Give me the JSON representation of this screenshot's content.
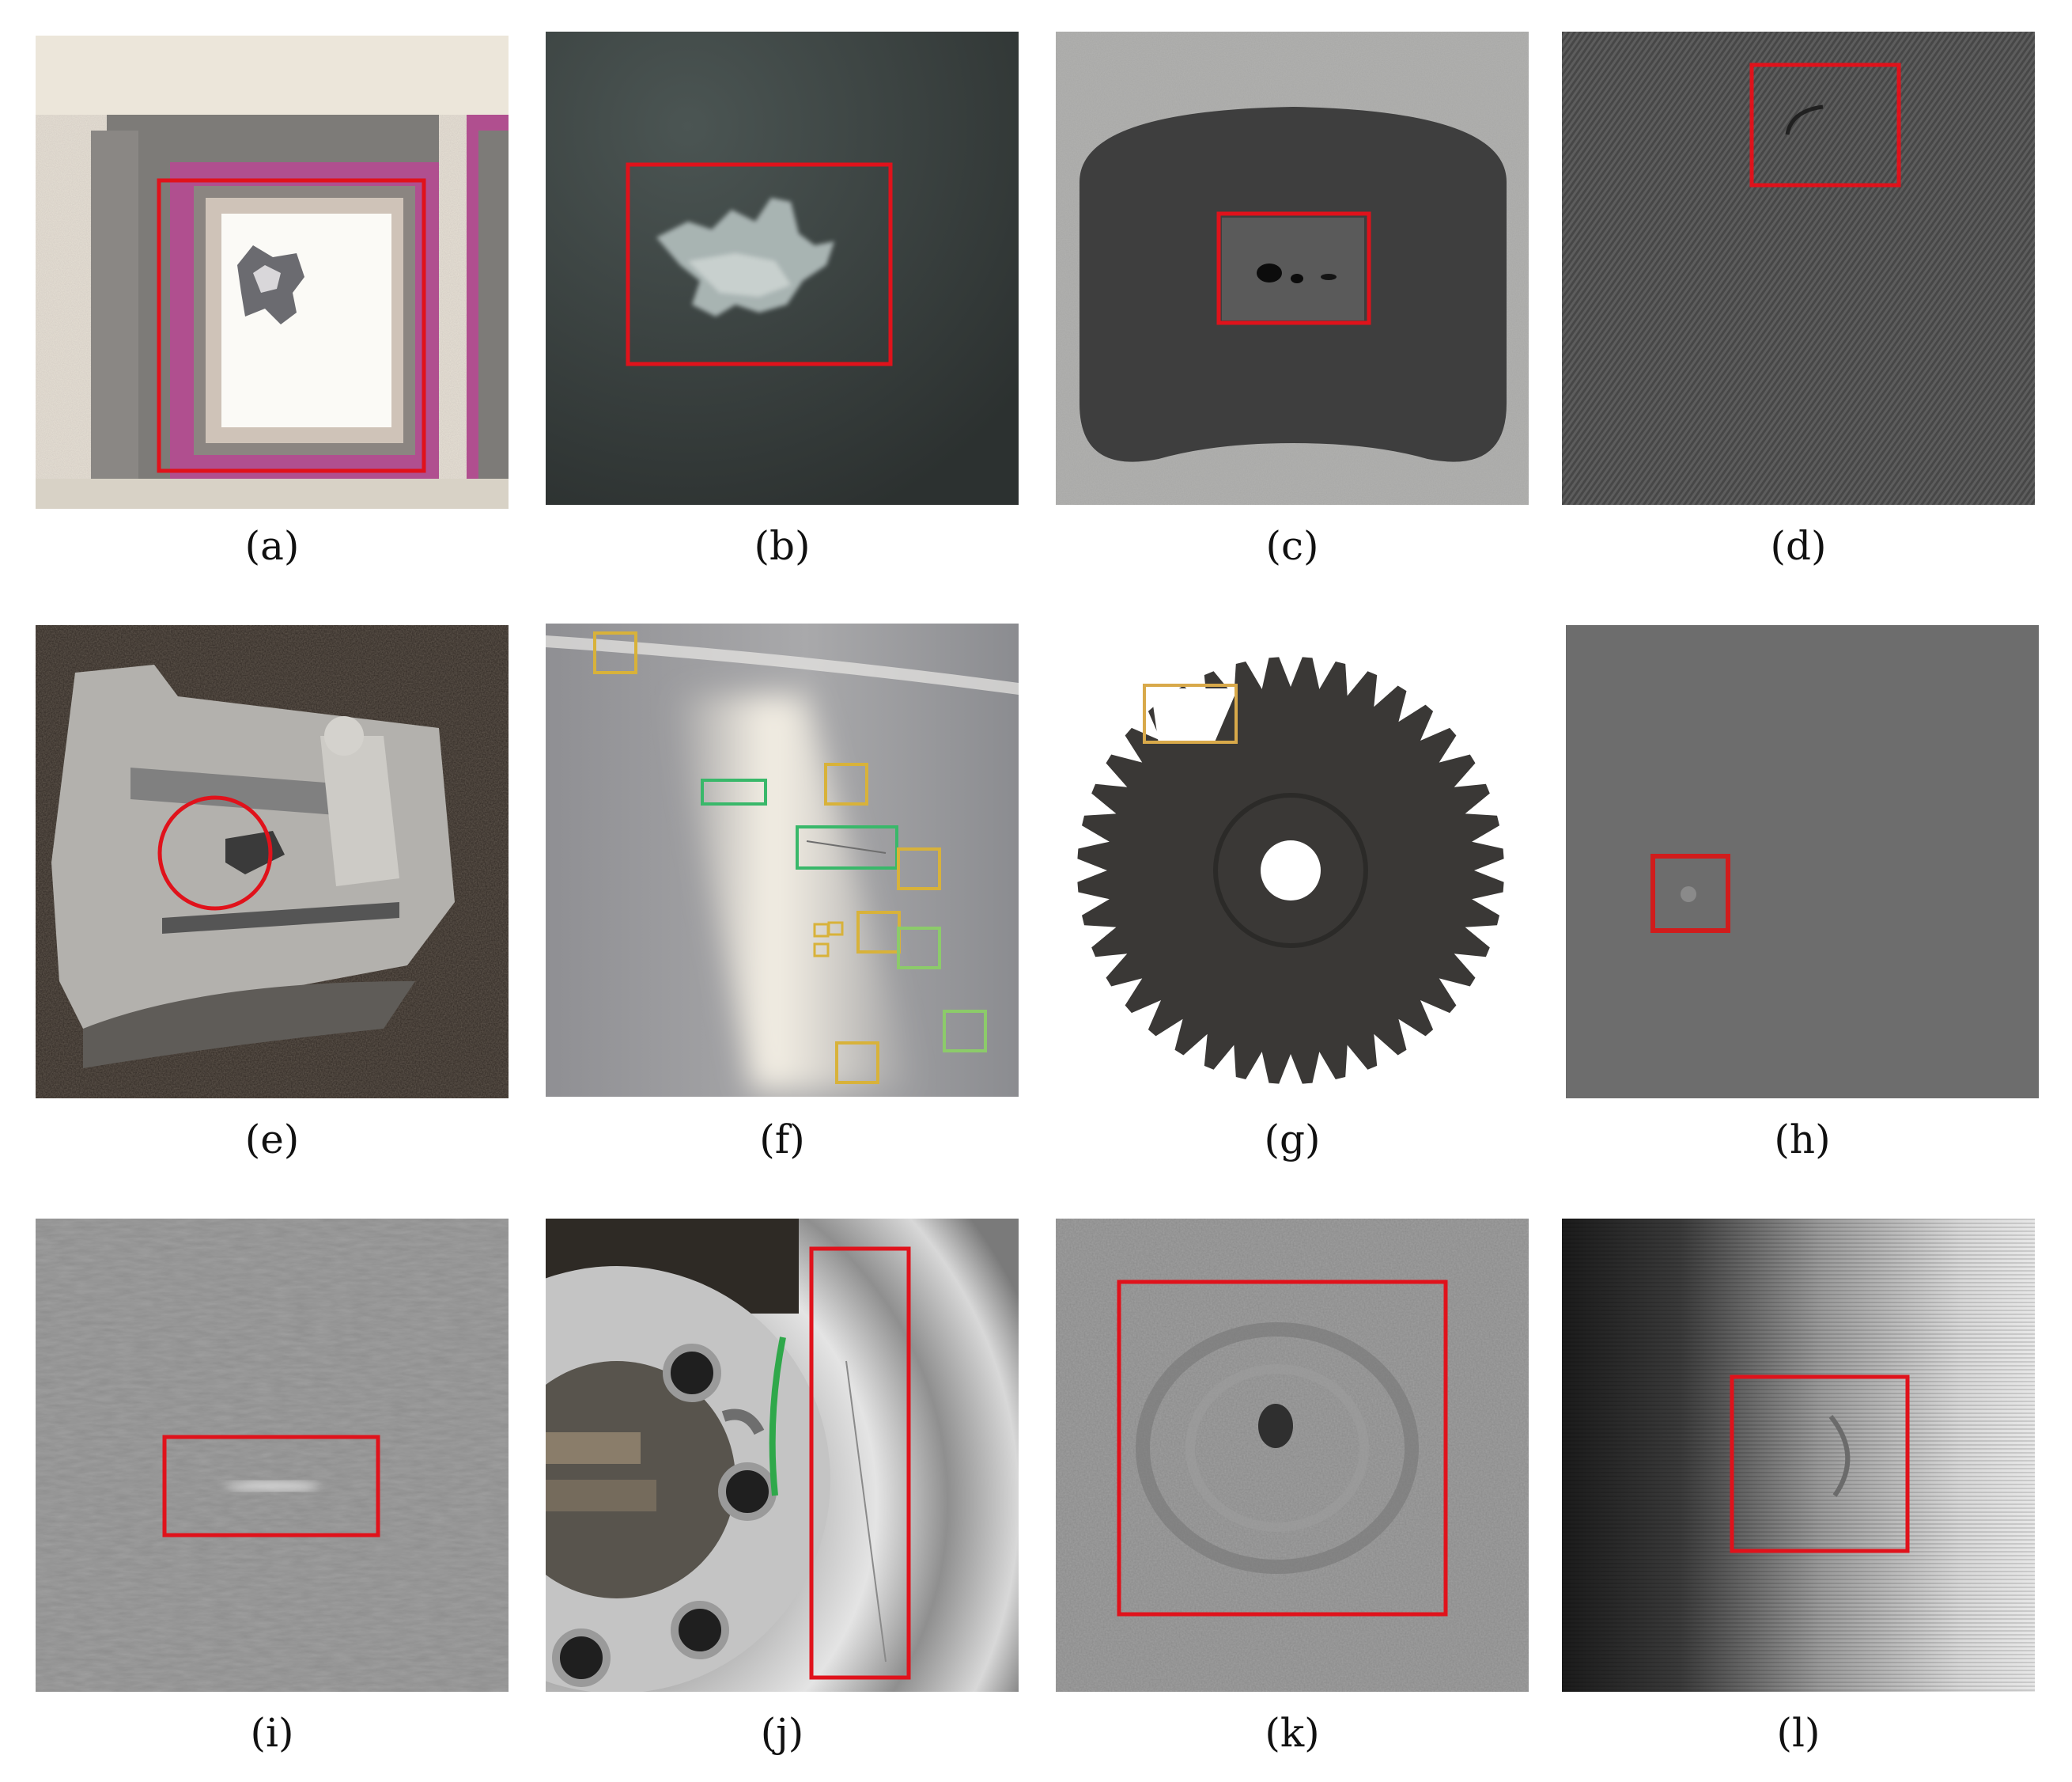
{
  "figure": {
    "panels": [
      {
        "id": "a",
        "caption": "(a)",
        "subject": "chip bonding pad with contamination",
        "box_color": "#e0121b",
        "box_shape": "rect"
      },
      {
        "id": "b",
        "caption": "(b)",
        "subject": "dark surface with bright blotch",
        "box_color": "#e0121b",
        "box_shape": "rect"
      },
      {
        "id": "c",
        "caption": "(c)",
        "subject": "radiograph of section with voids",
        "box_color": "#e0121b",
        "box_shape": "rect"
      },
      {
        "id": "d",
        "caption": "(d)",
        "subject": "woven fabric with scratch",
        "box_color": "#e0121b",
        "box_shape": "rect"
      },
      {
        "id": "e",
        "caption": "(e)",
        "subject": "cast metal part with cavity",
        "box_color": "#e0121b",
        "box_shape": "circle"
      },
      {
        "id": "f",
        "caption": "(f)",
        "subject": "glossy surface with multiple defects",
        "box_colors": [
          "#d8b23a",
          "#39b86a",
          "#8ccb6a"
        ]
      },
      {
        "id": "g",
        "caption": "(g)",
        "subject": "gear with broken teeth",
        "box_color": "#d8a94a",
        "box_shape": "rect"
      },
      {
        "id": "h",
        "caption": "(h)",
        "subject": "gray surface with spot",
        "box_color": "#d11c1c",
        "box_shape": "rect"
      },
      {
        "id": "i",
        "caption": "(i)",
        "subject": "textured gray surface with streak",
        "box_color": "#e0121b",
        "box_shape": "rect"
      },
      {
        "id": "j",
        "caption": "(j)",
        "subject": "alloy wheel with scratch on rim",
        "box_color": "#e0121b",
        "box_shape": "rect"
      },
      {
        "id": "k",
        "caption": "(k)",
        "subject": "ultrasonic texture with pit",
        "box_color": "#e0121b",
        "box_shape": "rect"
      },
      {
        "id": "l",
        "caption": "(l)",
        "subject": "striped gradient surface with crescent",
        "box_color": "#e0121b",
        "box_shape": "rect"
      }
    ]
  }
}
